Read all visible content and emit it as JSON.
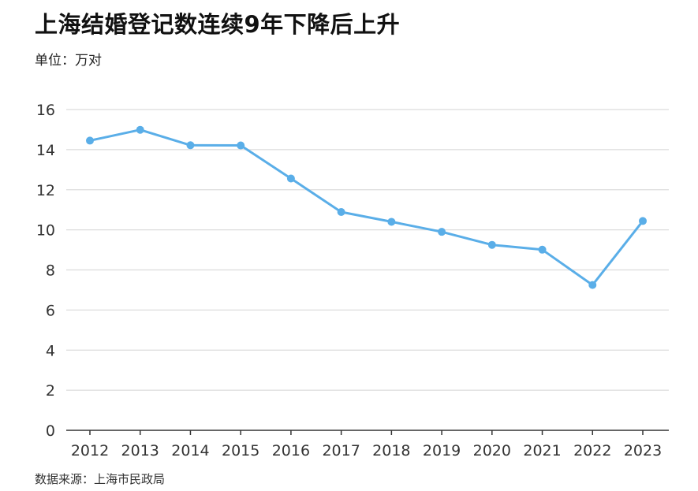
{
  "title": "上海结婚登记数连续9年下降后上升",
  "unit": "单位：万对",
  "source": "数据来源：上海市民政局",
  "colors": {
    "line": "#5aaee8",
    "grid": "#dcdcdc",
    "axis": "#333333"
  },
  "chart_data": {
    "type": "line",
    "title": "上海结婚登记数连续9年下降后上升",
    "xlabel": "",
    "ylabel": "单位：万对",
    "categories": [
      "2012",
      "2013",
      "2014",
      "2015",
      "2016",
      "2017",
      "2018",
      "2019",
      "2020",
      "2021",
      "2022",
      "2023"
    ],
    "series": [
      {
        "values": [
          14.45,
          14.99,
          14.22,
          14.21,
          12.56,
          10.89,
          10.4,
          9.9,
          9.25,
          9.01,
          7.25,
          10.44
        ]
      }
    ],
    "ylim": [
      0,
      16
    ],
    "yticks": [
      "0",
      "2",
      "4",
      "6",
      "8",
      "10",
      "12",
      "14",
      "16"
    ],
    "grid": true,
    "legend": "none"
  }
}
